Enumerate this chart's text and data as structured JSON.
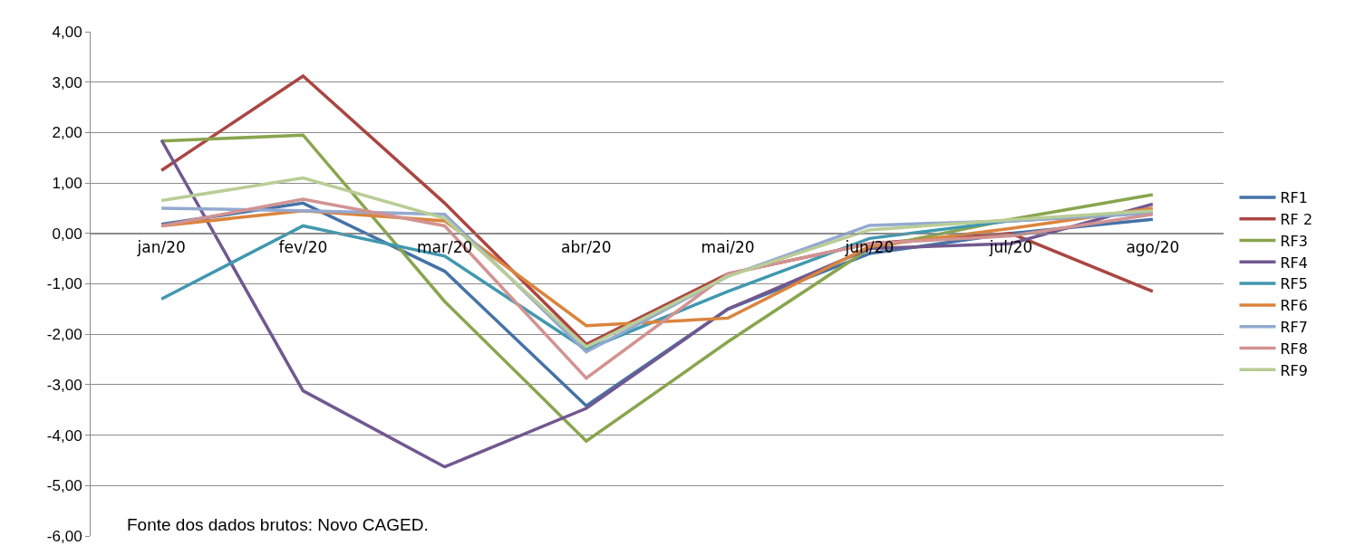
{
  "chart_data": {
    "type": "line",
    "categories": [
      "jan/20",
      "fev/20",
      "mar/20",
      "abr/20",
      "mai/20",
      "jun/20",
      "jul/20",
      "ago/20"
    ],
    "series": [
      {
        "name": "RF1",
        "color": "#4572a7",
        "values": [
          0.18,
          0.6,
          -0.75,
          -3.42,
          -1.5,
          -0.4,
          0.0,
          0.28
        ]
      },
      {
        "name": "RF 2",
        "color": "#aa4643",
        "values": [
          1.25,
          3.12,
          0.6,
          -2.2,
          -0.8,
          -0.2,
          0.0,
          -1.15
        ]
      },
      {
        "name": "RF3",
        "color": "#89a54e",
        "values": [
          1.83,
          1.95,
          -1.35,
          -4.12,
          -2.15,
          -0.3,
          0.28,
          0.77
        ]
      },
      {
        "name": "RF4",
        "color": "#71588f",
        "values": [
          1.85,
          -3.12,
          -4.63,
          -3.47,
          -1.5,
          -0.3,
          -0.2,
          0.58
        ]
      },
      {
        "name": "RF5",
        "color": "#4198af",
        "values": [
          -1.3,
          0.15,
          -0.45,
          -2.3,
          -1.15,
          -0.1,
          0.25,
          0.42
        ]
      },
      {
        "name": "RF6",
        "color": "#db843d",
        "values": [
          0.15,
          0.45,
          0.25,
          -1.83,
          -1.68,
          -0.26,
          0.1,
          0.5
        ]
      },
      {
        "name": "RF7",
        "color": "#93a9cf",
        "values": [
          0.5,
          0.45,
          0.38,
          -2.35,
          -0.85,
          0.16,
          0.25,
          0.4
        ]
      },
      {
        "name": "RF8",
        "color": "#d19392",
        "values": [
          0.15,
          0.68,
          0.15,
          -2.87,
          -0.8,
          -0.2,
          -0.05,
          0.38
        ]
      },
      {
        "name": "RF9",
        "color": "#b9cd96",
        "values": [
          0.65,
          1.1,
          0.3,
          -2.25,
          -0.85,
          0.07,
          0.27,
          0.45
        ]
      }
    ],
    "ylim": [
      -6,
      4
    ],
    "yticks": [
      {
        "value": -6,
        "label": "-6,00"
      },
      {
        "value": -5,
        "label": "-5,00"
      },
      {
        "value": -4,
        "label": "-4,00"
      },
      {
        "value": -3,
        "label": "-3,00"
      },
      {
        "value": -2,
        "label": "-2,00"
      },
      {
        "value": -1,
        "label": "-1,00"
      },
      {
        "value": 0,
        "label": "0,00"
      },
      {
        "value": 1,
        "label": "1,00"
      },
      {
        "value": 2,
        "label": "2,00"
      },
      {
        "value": 3,
        "label": "3,00"
      },
      {
        "value": 4,
        "label": "4,00"
      }
    ],
    "grid": "y",
    "legend": "right",
    "marker": "none",
    "line_style": "solid",
    "annotations": [
      "Fonte dos dados brutos: Novo CAGED."
    ]
  }
}
